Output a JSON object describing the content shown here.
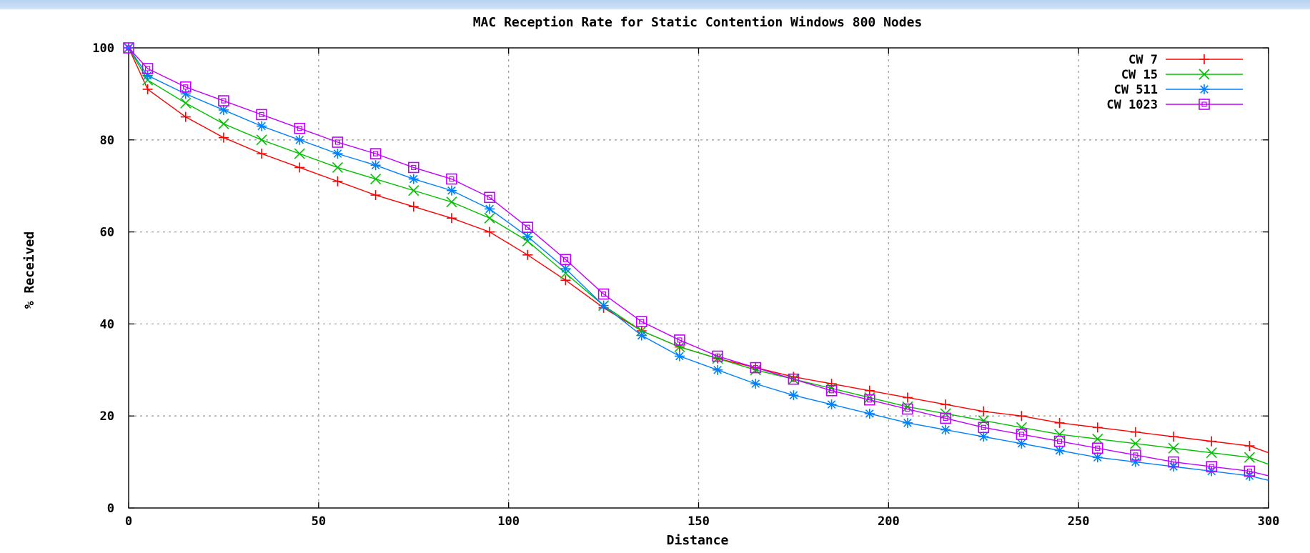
{
  "chart_data": {
    "type": "line",
    "title": "MAC Reception Rate for Static Contention Windows 800 Nodes",
    "xlabel": "Distance",
    "ylabel": "% Received",
    "xlim": [
      0,
      300
    ],
    "ylim": [
      0,
      100
    ],
    "xticks": [
      0,
      50,
      100,
      150,
      200,
      250,
      300
    ],
    "yticks": [
      0,
      20,
      40,
      60,
      80,
      100
    ],
    "grid": true,
    "legend_position": "top-right",
    "series": [
      {
        "name": "CW 7",
        "color": "#ff0000",
        "marker": "plus",
        "x": [
          0,
          5,
          15,
          25,
          35,
          45,
          55,
          65,
          75,
          85,
          95,
          105,
          115,
          125,
          135,
          145,
          155,
          165,
          175,
          185,
          195,
          205,
          215,
          225,
          235,
          245,
          255,
          265,
          275,
          285,
          295,
          300
        ],
        "y": [
          100,
          91,
          85,
          80.5,
          77,
          74,
          71,
          68,
          65.5,
          63,
          60,
          55,
          49.5,
          43.5,
          38.5,
          35,
          32.5,
          30.5,
          28.5,
          27,
          25.5,
          24,
          22.5,
          21,
          20,
          18.5,
          17.5,
          16.5,
          15.5,
          14.5,
          13.5,
          12
        ]
      },
      {
        "name": "CW 15",
        "color": "#00c000",
        "marker": "cross",
        "x": [
          0,
          5,
          15,
          25,
          35,
          45,
          55,
          65,
          75,
          85,
          95,
          105,
          115,
          125,
          135,
          145,
          155,
          165,
          175,
          185,
          195,
          205,
          215,
          225,
          235,
          245,
          255,
          265,
          275,
          285,
          295,
          300
        ],
        "y": [
          100,
          93,
          88,
          83.5,
          80,
          77,
          74,
          71.5,
          69,
          66.5,
          63,
          58,
          51,
          44,
          38.5,
          35,
          32.5,
          30,
          28,
          26,
          24,
          22,
          20.5,
          19,
          17.5,
          16,
          15,
          14,
          13,
          12,
          11,
          9.5
        ]
      },
      {
        "name": "CW 511",
        "color": "#0080ff",
        "marker": "star",
        "x": [
          0,
          5,
          15,
          25,
          35,
          45,
          55,
          65,
          75,
          85,
          95,
          105,
          115,
          125,
          135,
          145,
          155,
          165,
          175,
          185,
          195,
          205,
          215,
          225,
          235,
          245,
          255,
          265,
          275,
          285,
          295,
          300
        ],
        "y": [
          100,
          94,
          90,
          86.5,
          83,
          80,
          77,
          74.5,
          71.5,
          69,
          65,
          59,
          52,
          44,
          37.5,
          33,
          30,
          27,
          24.5,
          22.5,
          20.5,
          18.5,
          17,
          15.5,
          14,
          12.5,
          11,
          10,
          9,
          8,
          7,
          6
        ]
      },
      {
        "name": "CW 1023",
        "color": "#c000ff",
        "marker": "square",
        "x": [
          0,
          5,
          15,
          25,
          35,
          45,
          55,
          65,
          75,
          85,
          95,
          105,
          115,
          125,
          135,
          145,
          155,
          165,
          175,
          185,
          195,
          205,
          215,
          225,
          235,
          245,
          255,
          265,
          275,
          285,
          295,
          300
        ],
        "y": [
          100,
          95.5,
          91.5,
          88.5,
          85.5,
          82.5,
          79.5,
          77,
          74,
          71.5,
          67.5,
          61,
          54,
          46.5,
          40.5,
          36.5,
          33,
          30.5,
          28,
          25.5,
          23.5,
          21.5,
          19.5,
          17.5,
          16,
          14.5,
          13,
          11.5,
          10,
          9,
          8,
          7
        ]
      }
    ]
  }
}
